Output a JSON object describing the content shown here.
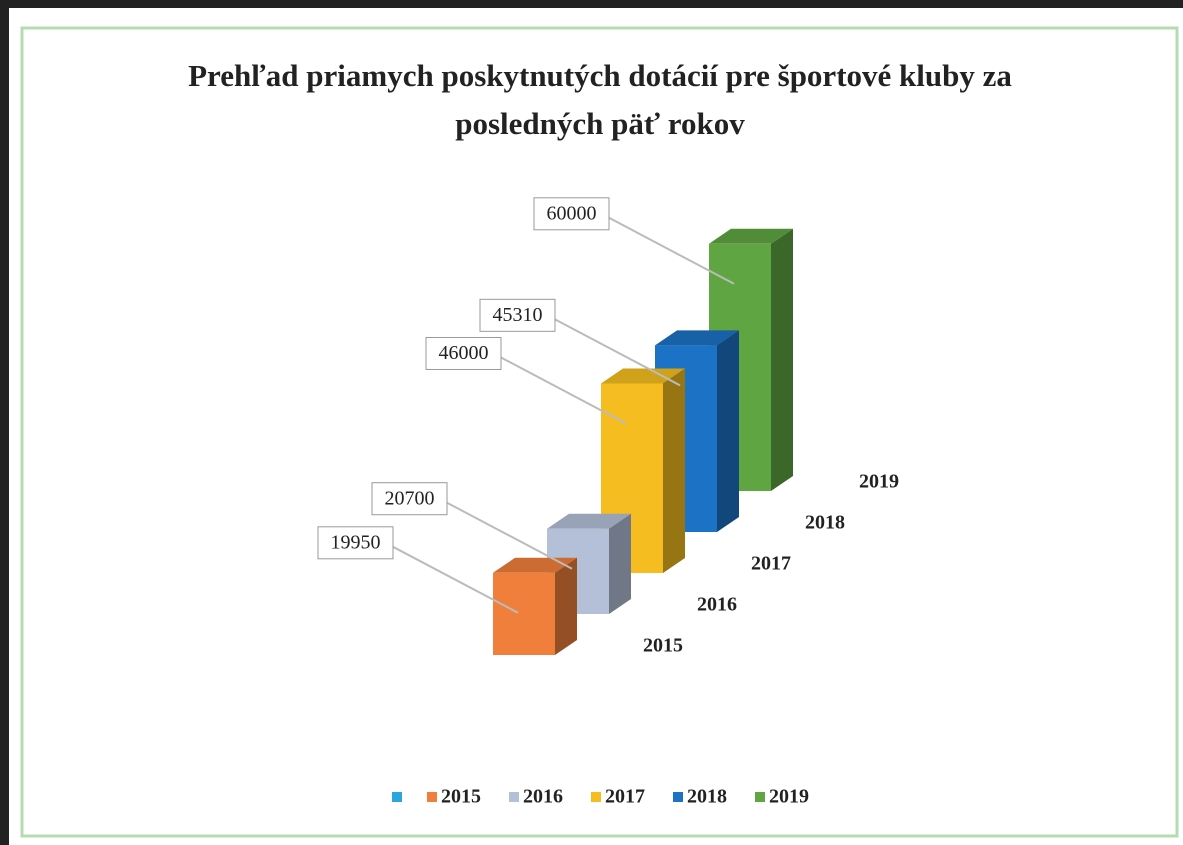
{
  "chart_data": {
    "type": "bar3d",
    "title": "Prehľad priamych poskytnutých dotácií pre športové kluby za posledných päť rokov",
    "categories": [
      "2015",
      "2016",
      "2017",
      "2018",
      "2019"
    ],
    "values": [
      19950,
      20700,
      46000,
      45310,
      60000
    ],
    "colors": [
      "#f07f3c",
      "#b4c0d8",
      "#f5bd1f",
      "#1c72c4",
      "#5fa642"
    ],
    "legend": "bottom"
  }
}
